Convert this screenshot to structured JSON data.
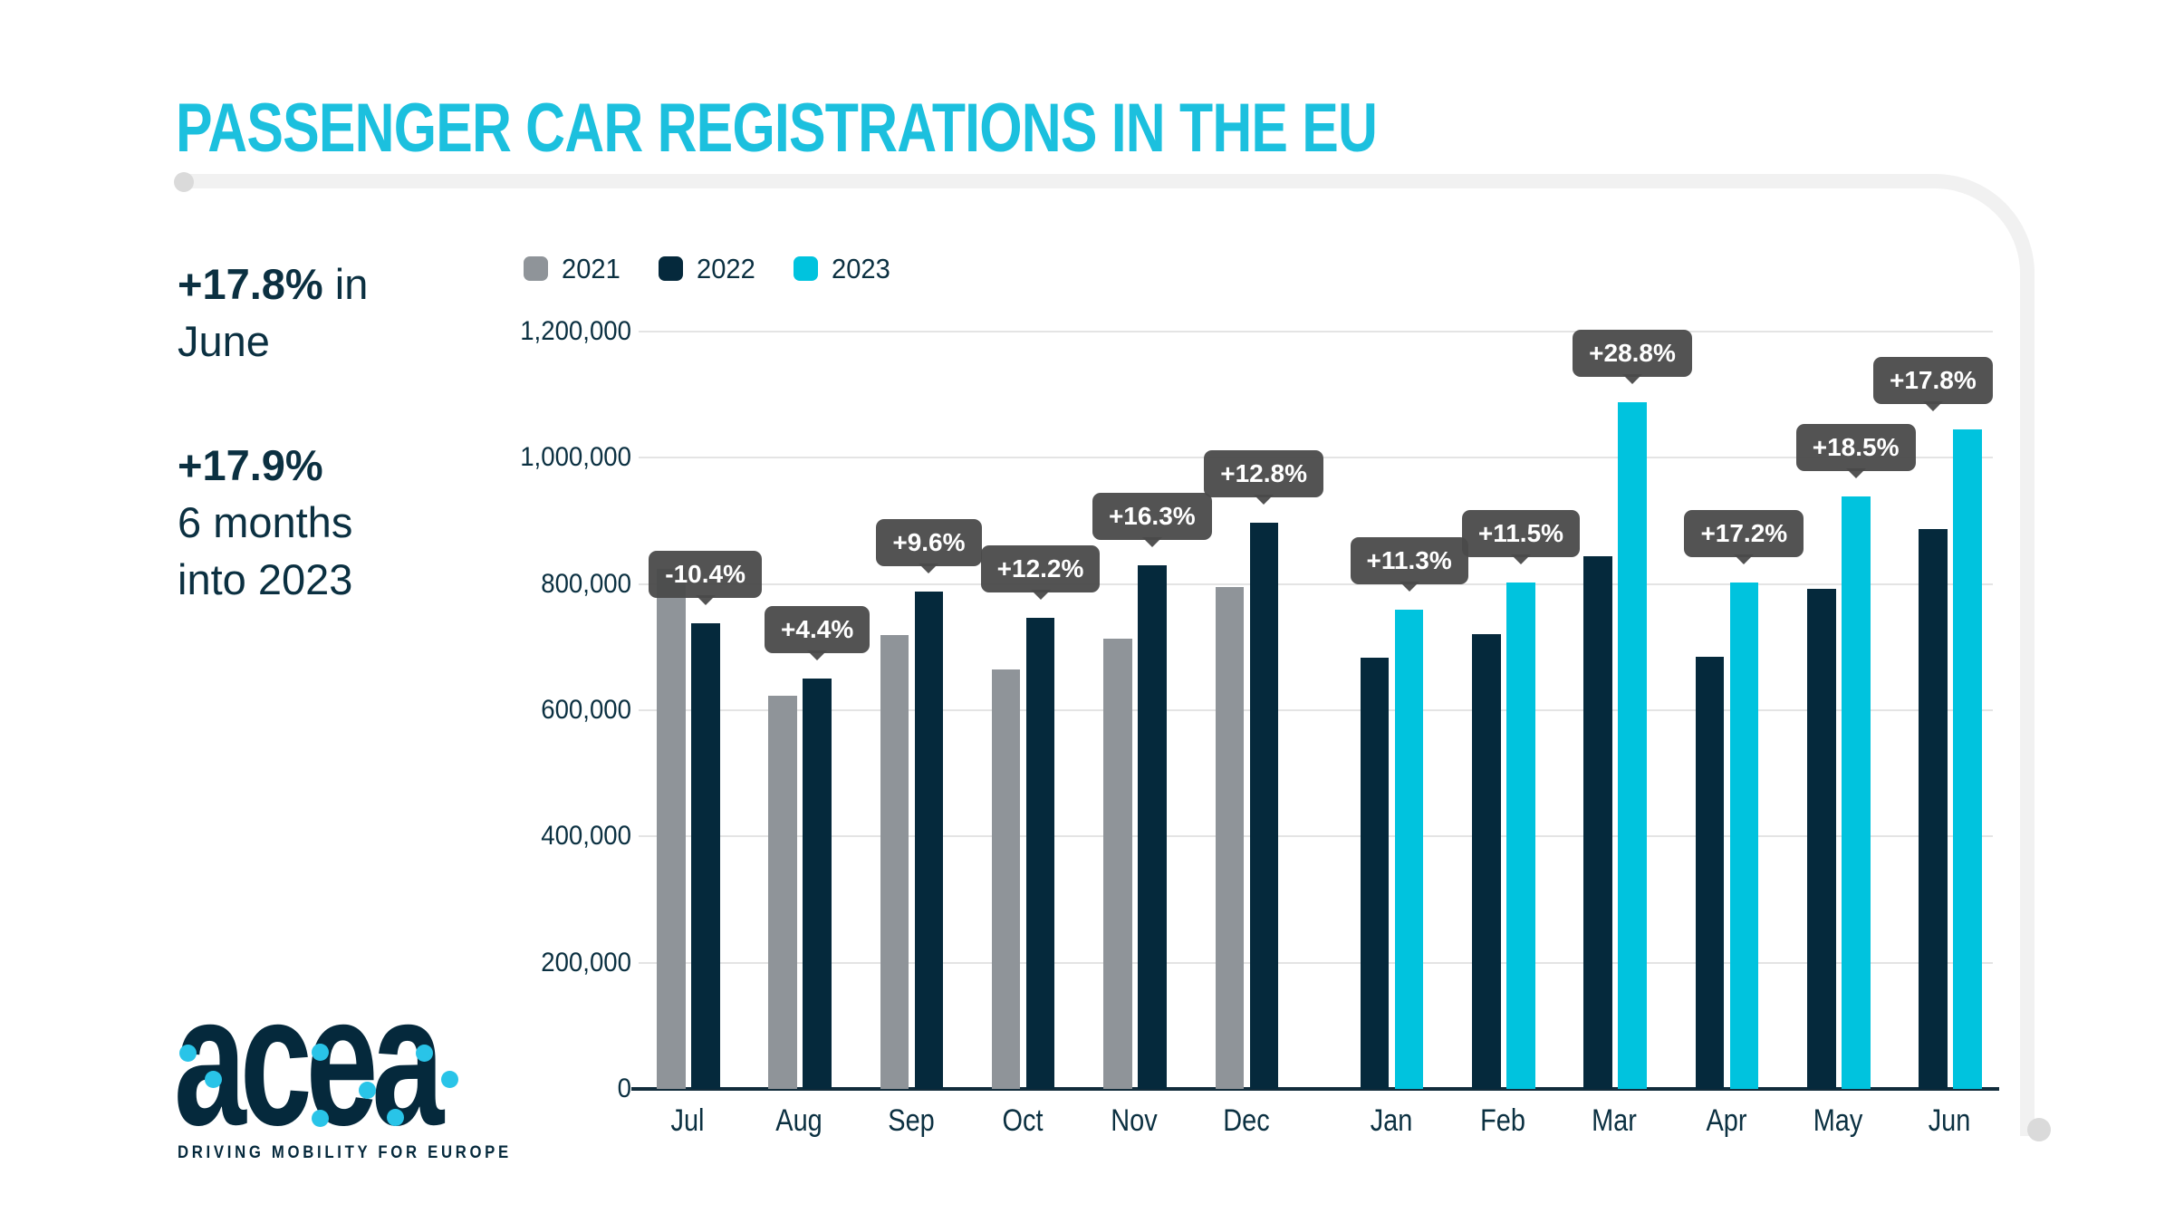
{
  "title": "PASSENGER CAR REGISTRATIONS IN THE EU",
  "stats": {
    "stat1": {
      "highlight": "+17.8%",
      "after": " in",
      "line2": "June"
    },
    "stat2": {
      "highlight": "+17.9%",
      "line2": "6 months",
      "line3": "into 2023"
    }
  },
  "logo": {
    "wordmark": "acea",
    "tagline": "DRIVING MOBILITY FOR EUROPE"
  },
  "colors": {
    "title_cyan": "#1cc0de",
    "accent_cyan": "#00c3de",
    "navy": "#05293c",
    "gray": "#8f9499",
    "text_navy": "#0b3041",
    "gridline": "#e4e4e4",
    "axis": "#122c3b",
    "tooltip_bg": "#4a4a4a",
    "frame": "#f1f1f1"
  },
  "chart_data": {
    "type": "bar",
    "title": "PASSENGER CAR REGISTRATIONS IN THE EU",
    "categories": [
      "Jul",
      "Aug",
      "Sep",
      "Oct",
      "Nov",
      "Dec",
      "Jan",
      "Feb",
      "Mar",
      "Apr",
      "May",
      "Jun"
    ],
    "series": [
      {
        "name": "2021",
        "color": "#8f9499",
        "values": [
          824000,
          623000,
          719000,
          665000,
          713000,
          795000,
          null,
          null,
          null,
          null,
          null,
          null
        ]
      },
      {
        "name": "2022",
        "color": "#05293c",
        "values": [
          738000,
          650000,
          788000,
          746000,
          829000,
          897000,
          683000,
          720000,
          844000,
          685000,
          792000,
          887000
        ]
      },
      {
        "name": "2023",
        "color": "#00c3de",
        "values": [
          null,
          null,
          null,
          null,
          null,
          null,
          760000,
          803000,
          1088000,
          803000,
          939000,
          1045000
        ]
      }
    ],
    "change_labels": [
      "-10.4%",
      "+4.4%",
      "+9.6%",
      "+12.2%",
      "+16.3%",
      "+12.8%",
      "+11.3%",
      "+11.5%",
      "+28.8%",
      "+17.2%",
      "+18.5%",
      "+17.8%"
    ],
    "ylabel": "",
    "xlabel": "",
    "ylim": [
      0,
      1200000
    ],
    "ytick_step": 200000,
    "grid": true,
    "legend_position": "top-left"
  }
}
